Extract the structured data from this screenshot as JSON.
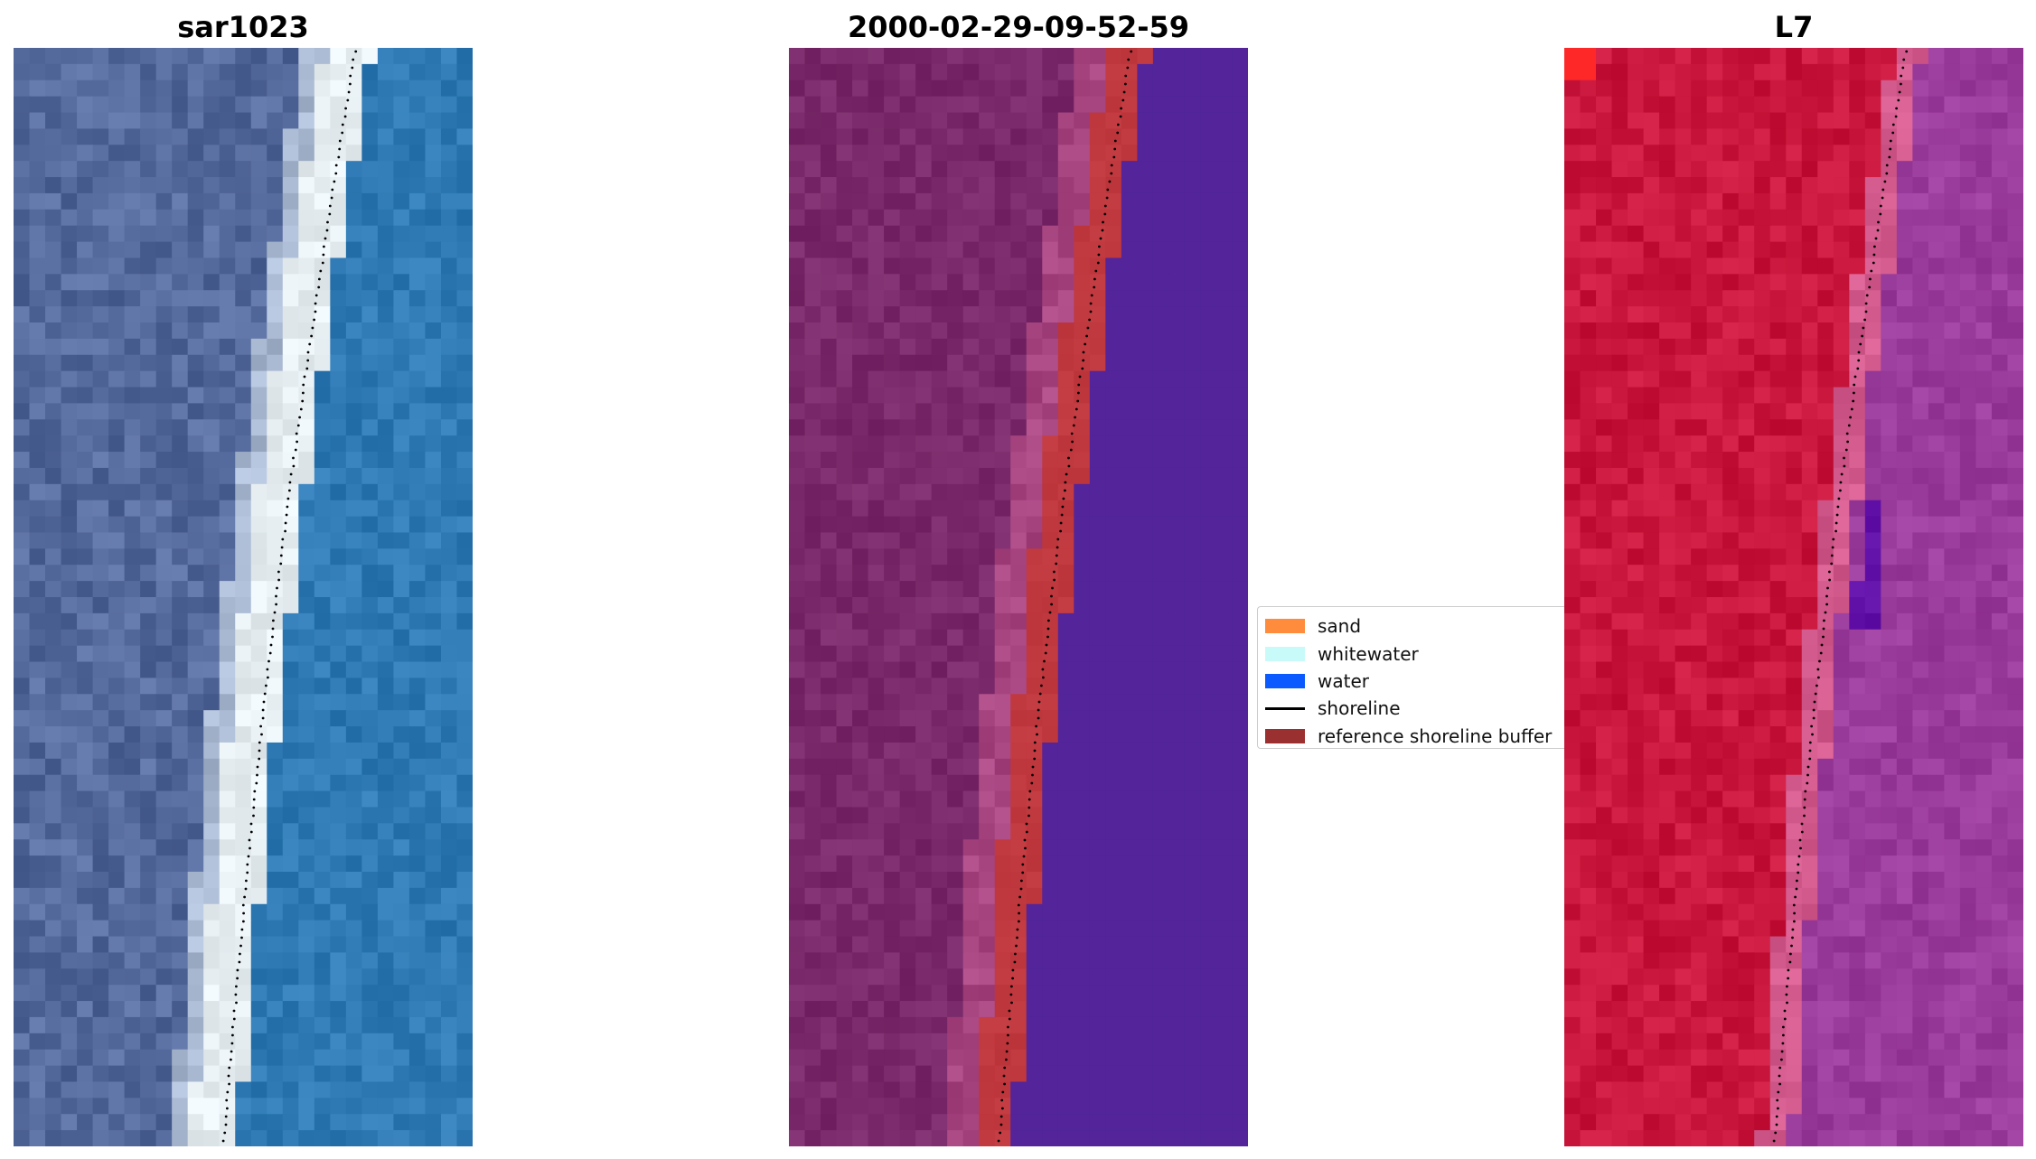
{
  "panels": [
    {
      "title": "sar1023",
      "kind": "rgb"
    },
    {
      "title": "2000-02-29-09-52-59",
      "kind": "classified"
    },
    {
      "title": "L7",
      "kind": "false-color"
    }
  ],
  "legend": {
    "items": [
      {
        "label": "sand",
        "color": "#ff8c3c",
        "type": "patch"
      },
      {
        "label": "whitewater",
        "color": "#c8fafa",
        "type": "patch"
      },
      {
        "label": "water",
        "color": "#0a5aff",
        "type": "patch"
      },
      {
        "label": "shoreline",
        "color": "#000000",
        "type": "line"
      },
      {
        "label": "reference shoreline buffer",
        "color": "#9b3030",
        "type": "patch"
      }
    ]
  },
  "colors": {
    "rgb_land": "#556a9c",
    "rgb_sand": "#e6eef2",
    "rgb_water": "#2f7ab4",
    "cls_land": "#7a2a6a",
    "cls_buffer": "#c0393f",
    "cls_water": "#53249a",
    "fc_land": "#c8163c",
    "fc_water": "#9a3c9c"
  }
}
